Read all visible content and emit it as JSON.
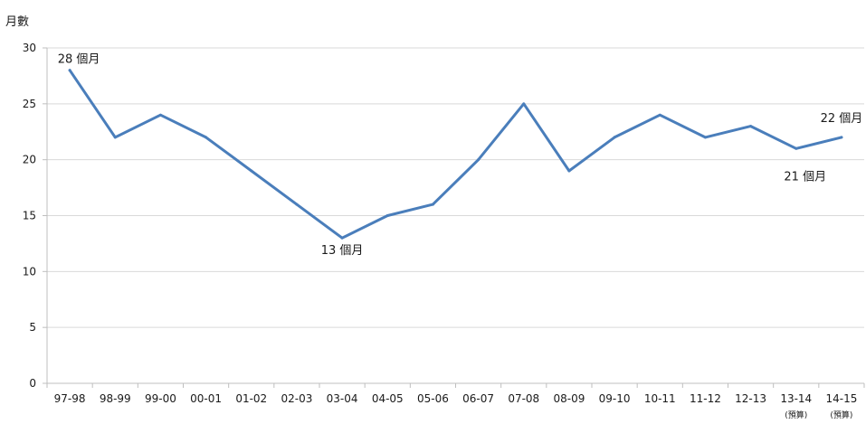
{
  "chart_data": {
    "type": "line",
    "title": "",
    "ylabel": "月數",
    "xlabel": "",
    "ylim": [
      0,
      30
    ],
    "yticks": [
      0,
      5,
      10,
      15,
      20,
      25,
      30
    ],
    "grid": true,
    "legend": "none",
    "categories": [
      "97-98",
      "98-99",
      "99-00",
      "00-01",
      "01-02",
      "02-03",
      "03-04",
      "04-05",
      "05-06",
      "06-07",
      "07-08",
      "08-09",
      "09-10",
      "10-11",
      "11-12",
      "12-13",
      "13-14",
      "14-15"
    ],
    "category_notes": [
      "",
      "",
      "",
      "",
      "",
      "",
      "",
      "",
      "",
      "",
      "",
      "",
      "",
      "",
      "",
      "",
      "(預算)",
      "(預算)"
    ],
    "series": [
      {
        "values": [
          28,
          22,
          24,
          22,
          19,
          16,
          13,
          15,
          16,
          20,
          25,
          19,
          22,
          24,
          22,
          23,
          21,
          22
        ],
        "color": "#4a7ebb"
      }
    ],
    "annotations": [
      {
        "category": "97-98",
        "text": "28 個月"
      },
      {
        "category": "03-04",
        "text": "13 個月"
      },
      {
        "category": "13-14",
        "text": "21 個月"
      },
      {
        "category": "14-15",
        "text": "22 個月"
      }
    ],
    "colors": {
      "line": "#4a7ebb",
      "grid": "#d9d9d9",
      "axis": "#bfbfbf",
      "text": "#1a1a1a"
    }
  }
}
